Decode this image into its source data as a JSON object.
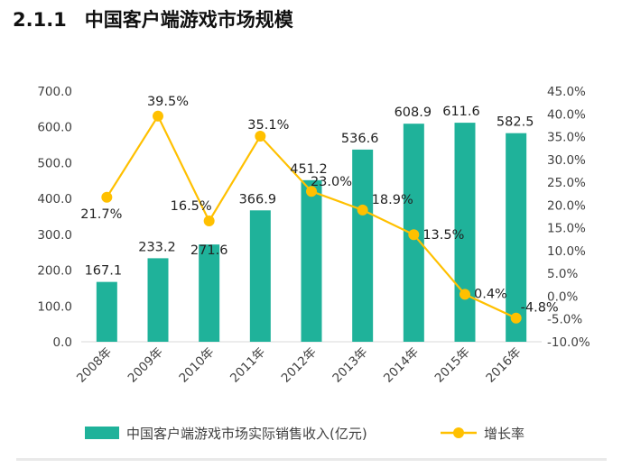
{
  "heading": {
    "number": "2.1.1",
    "title": "中国客户端游戏市场规模"
  },
  "colors": {
    "bar": "#1fb29a",
    "line": "#ffc000",
    "axis": "#d9d9d9",
    "text": "#404040"
  },
  "chart_data": {
    "type": "bar+line",
    "title": "",
    "categories": [
      "2008年",
      "2009年",
      "2010年",
      "2011年",
      "2012年",
      "2013年",
      "2014年",
      "2015年",
      "2016年"
    ],
    "series": [
      {
        "name": "中国客户端游戏市场实际销售收入(亿元)",
        "type": "bar",
        "axis": "left",
        "values": [
          167.1,
          233.2,
          271.6,
          366.9,
          451.2,
          536.6,
          608.9,
          611.6,
          582.5
        ],
        "labels": [
          "167.1",
          "233.2",
          "271.6",
          "366.9",
          "451.2",
          "536.6",
          "608.9",
          "611.6",
          "582.5"
        ]
      },
      {
        "name": "增长率",
        "type": "line",
        "axis": "right",
        "values": [
          21.7,
          39.5,
          16.5,
          35.1,
          23.0,
          18.9,
          13.5,
          0.4,
          -4.8
        ],
        "labels": [
          "21.7%",
          "39.5%",
          "16.5%",
          "35.1%",
          "23.0%",
          "18.9%",
          "13.5%",
          "0.4%",
          "-4.8%"
        ]
      }
    ],
    "y_left": {
      "min": 0,
      "max": 700,
      "step": 100,
      "ticks": [
        "0.0",
        "100.0",
        "200.0",
        "300.0",
        "400.0",
        "500.0",
        "600.0",
        "700.0"
      ]
    },
    "y_right": {
      "min": -10,
      "max": 45,
      "step": 5,
      "ticks": [
        "-10.0%",
        "-5.0%",
        "0.0%",
        "5.0%",
        "10.0%",
        "15.0%",
        "20.0%",
        "25.0%",
        "30.0%",
        "35.0%",
        "40.0%",
        "45.0%"
      ]
    },
    "legend": {
      "position": "bottom",
      "bar_label": "中国客户端游戏市场实际销售收入(亿元)",
      "line_label": "增长率"
    }
  }
}
